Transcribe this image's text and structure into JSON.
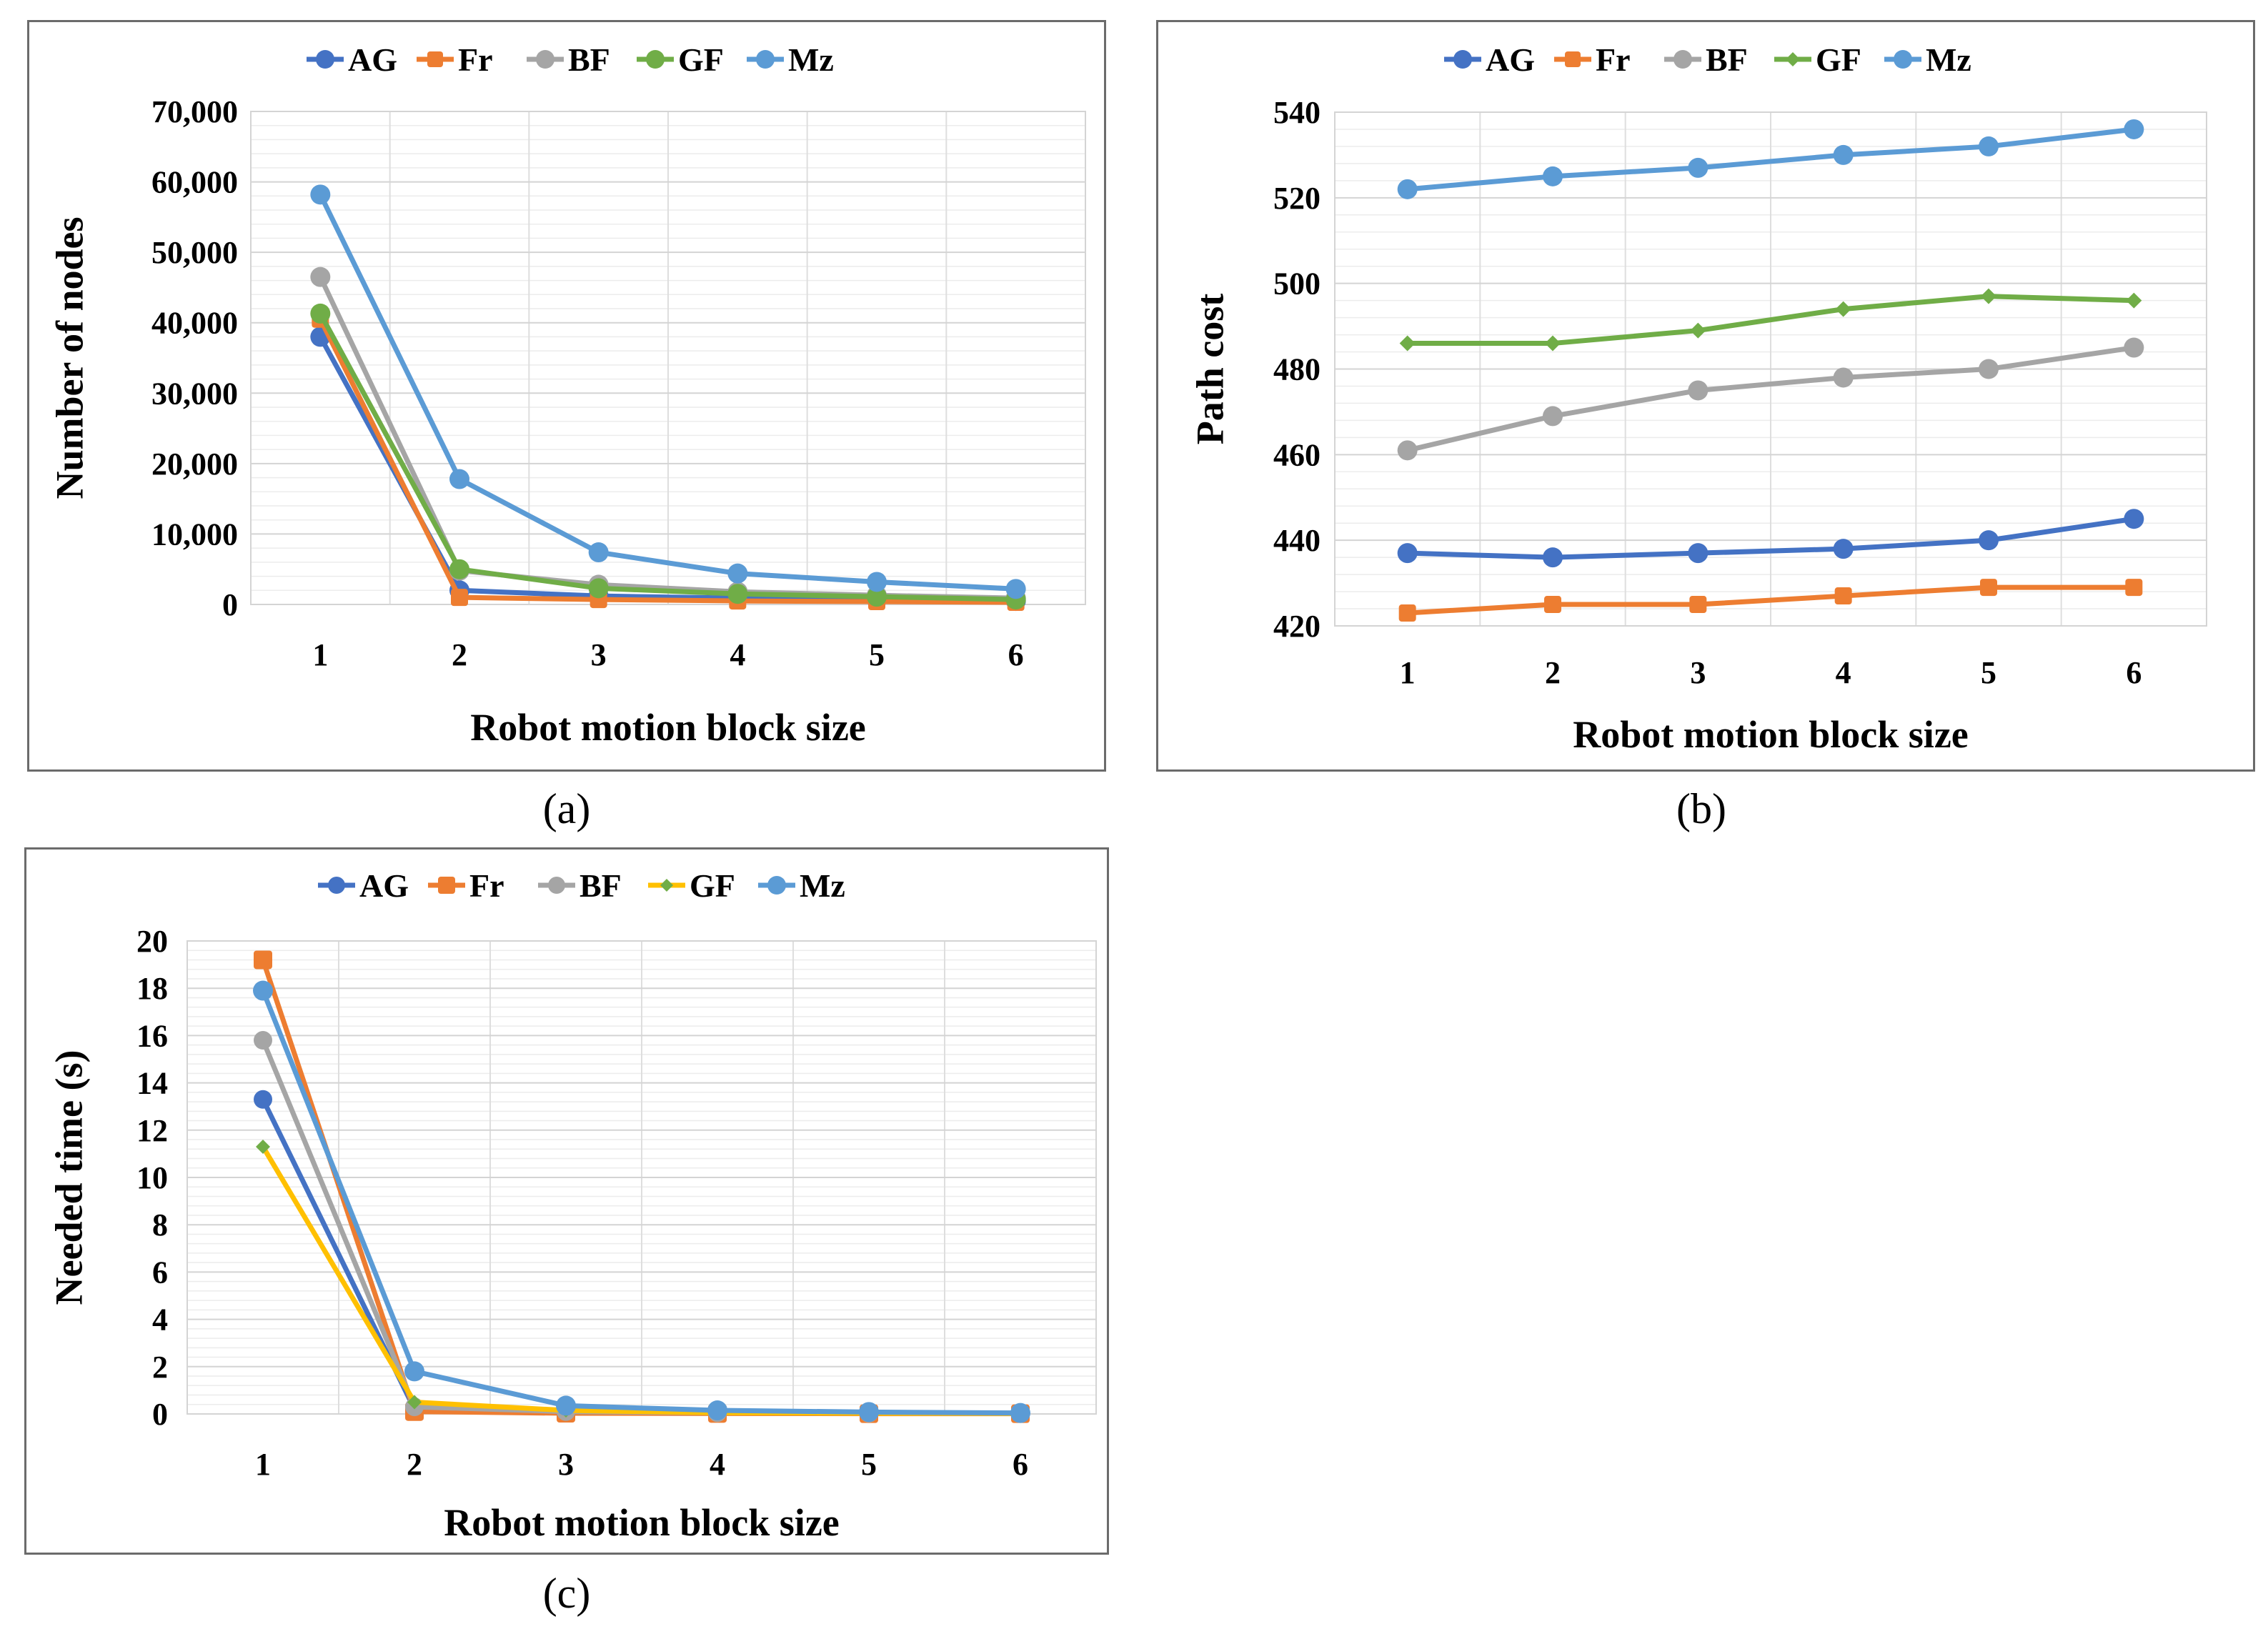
{
  "chart_data": [
    {
      "type": "line",
      "xlabel": "Robot motion block size",
      "ylabel": "Number of nodes",
      "caption": "(a)",
      "legend_position": "top",
      "x": [
        1,
        2,
        3,
        4,
        5,
        6
      ],
      "ylim": [
        0,
        70000
      ],
      "yticks": [
        0,
        10000,
        20000,
        30000,
        40000,
        50000,
        60000,
        70000
      ],
      "ytick_labels": [
        "0",
        "10,000",
        "20,000",
        "30,000",
        "40,000",
        "50,000",
        "60,000",
        "70,000"
      ],
      "grid": true,
      "series": [
        {
          "name": "AG",
          "color": "#4472C4",
          "marker": "circle",
          "values": [
            38000,
            2000,
            1200,
            900,
            700,
            500
          ]
        },
        {
          "name": "Fr",
          "color": "#ED7D31",
          "marker": "square",
          "values": [
            40500,
            1000,
            700,
            500,
            400,
            300
          ]
        },
        {
          "name": "BF",
          "color": "#A5A5A5",
          "marker": "circle",
          "values": [
            46500,
            4800,
            2800,
            1800,
            1300,
            900
          ]
        },
        {
          "name": "GF",
          "color": "#70AD47",
          "marker": "circle",
          "values": [
            41300,
            5000,
            2300,
            1500,
            1100,
            700
          ]
        },
        {
          "name": "Mz",
          "color": "#5B9BD5",
          "marker": "circle",
          "values": [
            58200,
            17800,
            7400,
            4400,
            3200,
            2200
          ]
        }
      ]
    },
    {
      "type": "line",
      "xlabel": "Robot motion block size",
      "ylabel": "Path cost",
      "caption": "(b)",
      "legend_position": "top",
      "x": [
        1,
        2,
        3,
        4,
        5,
        6
      ],
      "ylim": [
        420,
        540
      ],
      "yticks": [
        420,
        440,
        460,
        480,
        500,
        520,
        540
      ],
      "ytick_labels": [
        "420",
        "440",
        "460",
        "480",
        "500",
        "520",
        "540"
      ],
      "grid": true,
      "series": [
        {
          "name": "AG",
          "color": "#4472C4",
          "marker": "circle",
          "values": [
            437,
            436,
            437,
            438,
            440,
            445
          ]
        },
        {
          "name": "Fr",
          "color": "#ED7D31",
          "marker": "square",
          "values": [
            423,
            425,
            425,
            427,
            429,
            429
          ]
        },
        {
          "name": "BF",
          "color": "#A5A5A5",
          "marker": "circle",
          "values": [
            461,
            469,
            475,
            478,
            480,
            485
          ]
        },
        {
          "name": "GF",
          "color": "#70AD47",
          "marker": "diamond",
          "values": [
            486,
            486,
            489,
            494,
            497,
            496
          ]
        },
        {
          "name": "Mz",
          "color": "#5B9BD5",
          "marker": "circle",
          "values": [
            522,
            525,
            527,
            530,
            532,
            536
          ]
        }
      ]
    },
    {
      "type": "line",
      "xlabel": "Robot motion block size",
      "ylabel": "Needed time (s)",
      "caption": "(c)",
      "legend_position": "top",
      "x": [
        1,
        2,
        3,
        4,
        5,
        6
      ],
      "ylim": [
        0,
        20
      ],
      "yticks": [
        0,
        2,
        4,
        6,
        8,
        10,
        12,
        14,
        16,
        18,
        20
      ],
      "ytick_labels": [
        "0",
        "2",
        "4",
        "6",
        "8",
        "10",
        "12",
        "14",
        "16",
        "18",
        "20"
      ],
      "grid": true,
      "series": [
        {
          "name": "AG",
          "color": "#4472C4",
          "marker": "circle",
          "values": [
            13.3,
            0.2,
            0.1,
            0.05,
            0.03,
            0.02
          ]
        },
        {
          "name": "Fr",
          "color": "#ED7D31",
          "marker": "square",
          "values": [
            19.2,
            0.1,
            0.03,
            0.02,
            0.01,
            0.01
          ]
        },
        {
          "name": "BF",
          "color": "#A5A5A5",
          "marker": "circle",
          "values": [
            15.8,
            0.3,
            0.1,
            0.05,
            0.03,
            0.02
          ]
        },
        {
          "name": "GF",
          "color": "#FFC000",
          "marker_color": "#70AD47",
          "marker": "diamond",
          "values": [
            11.3,
            0.5,
            0.15,
            0.05,
            0.03,
            0.02
          ]
        },
        {
          "name": "Mz",
          "color": "#5B9BD5",
          "marker": "circle",
          "values": [
            17.9,
            1.8,
            0.35,
            0.15,
            0.08,
            0.04
          ]
        }
      ]
    }
  ]
}
